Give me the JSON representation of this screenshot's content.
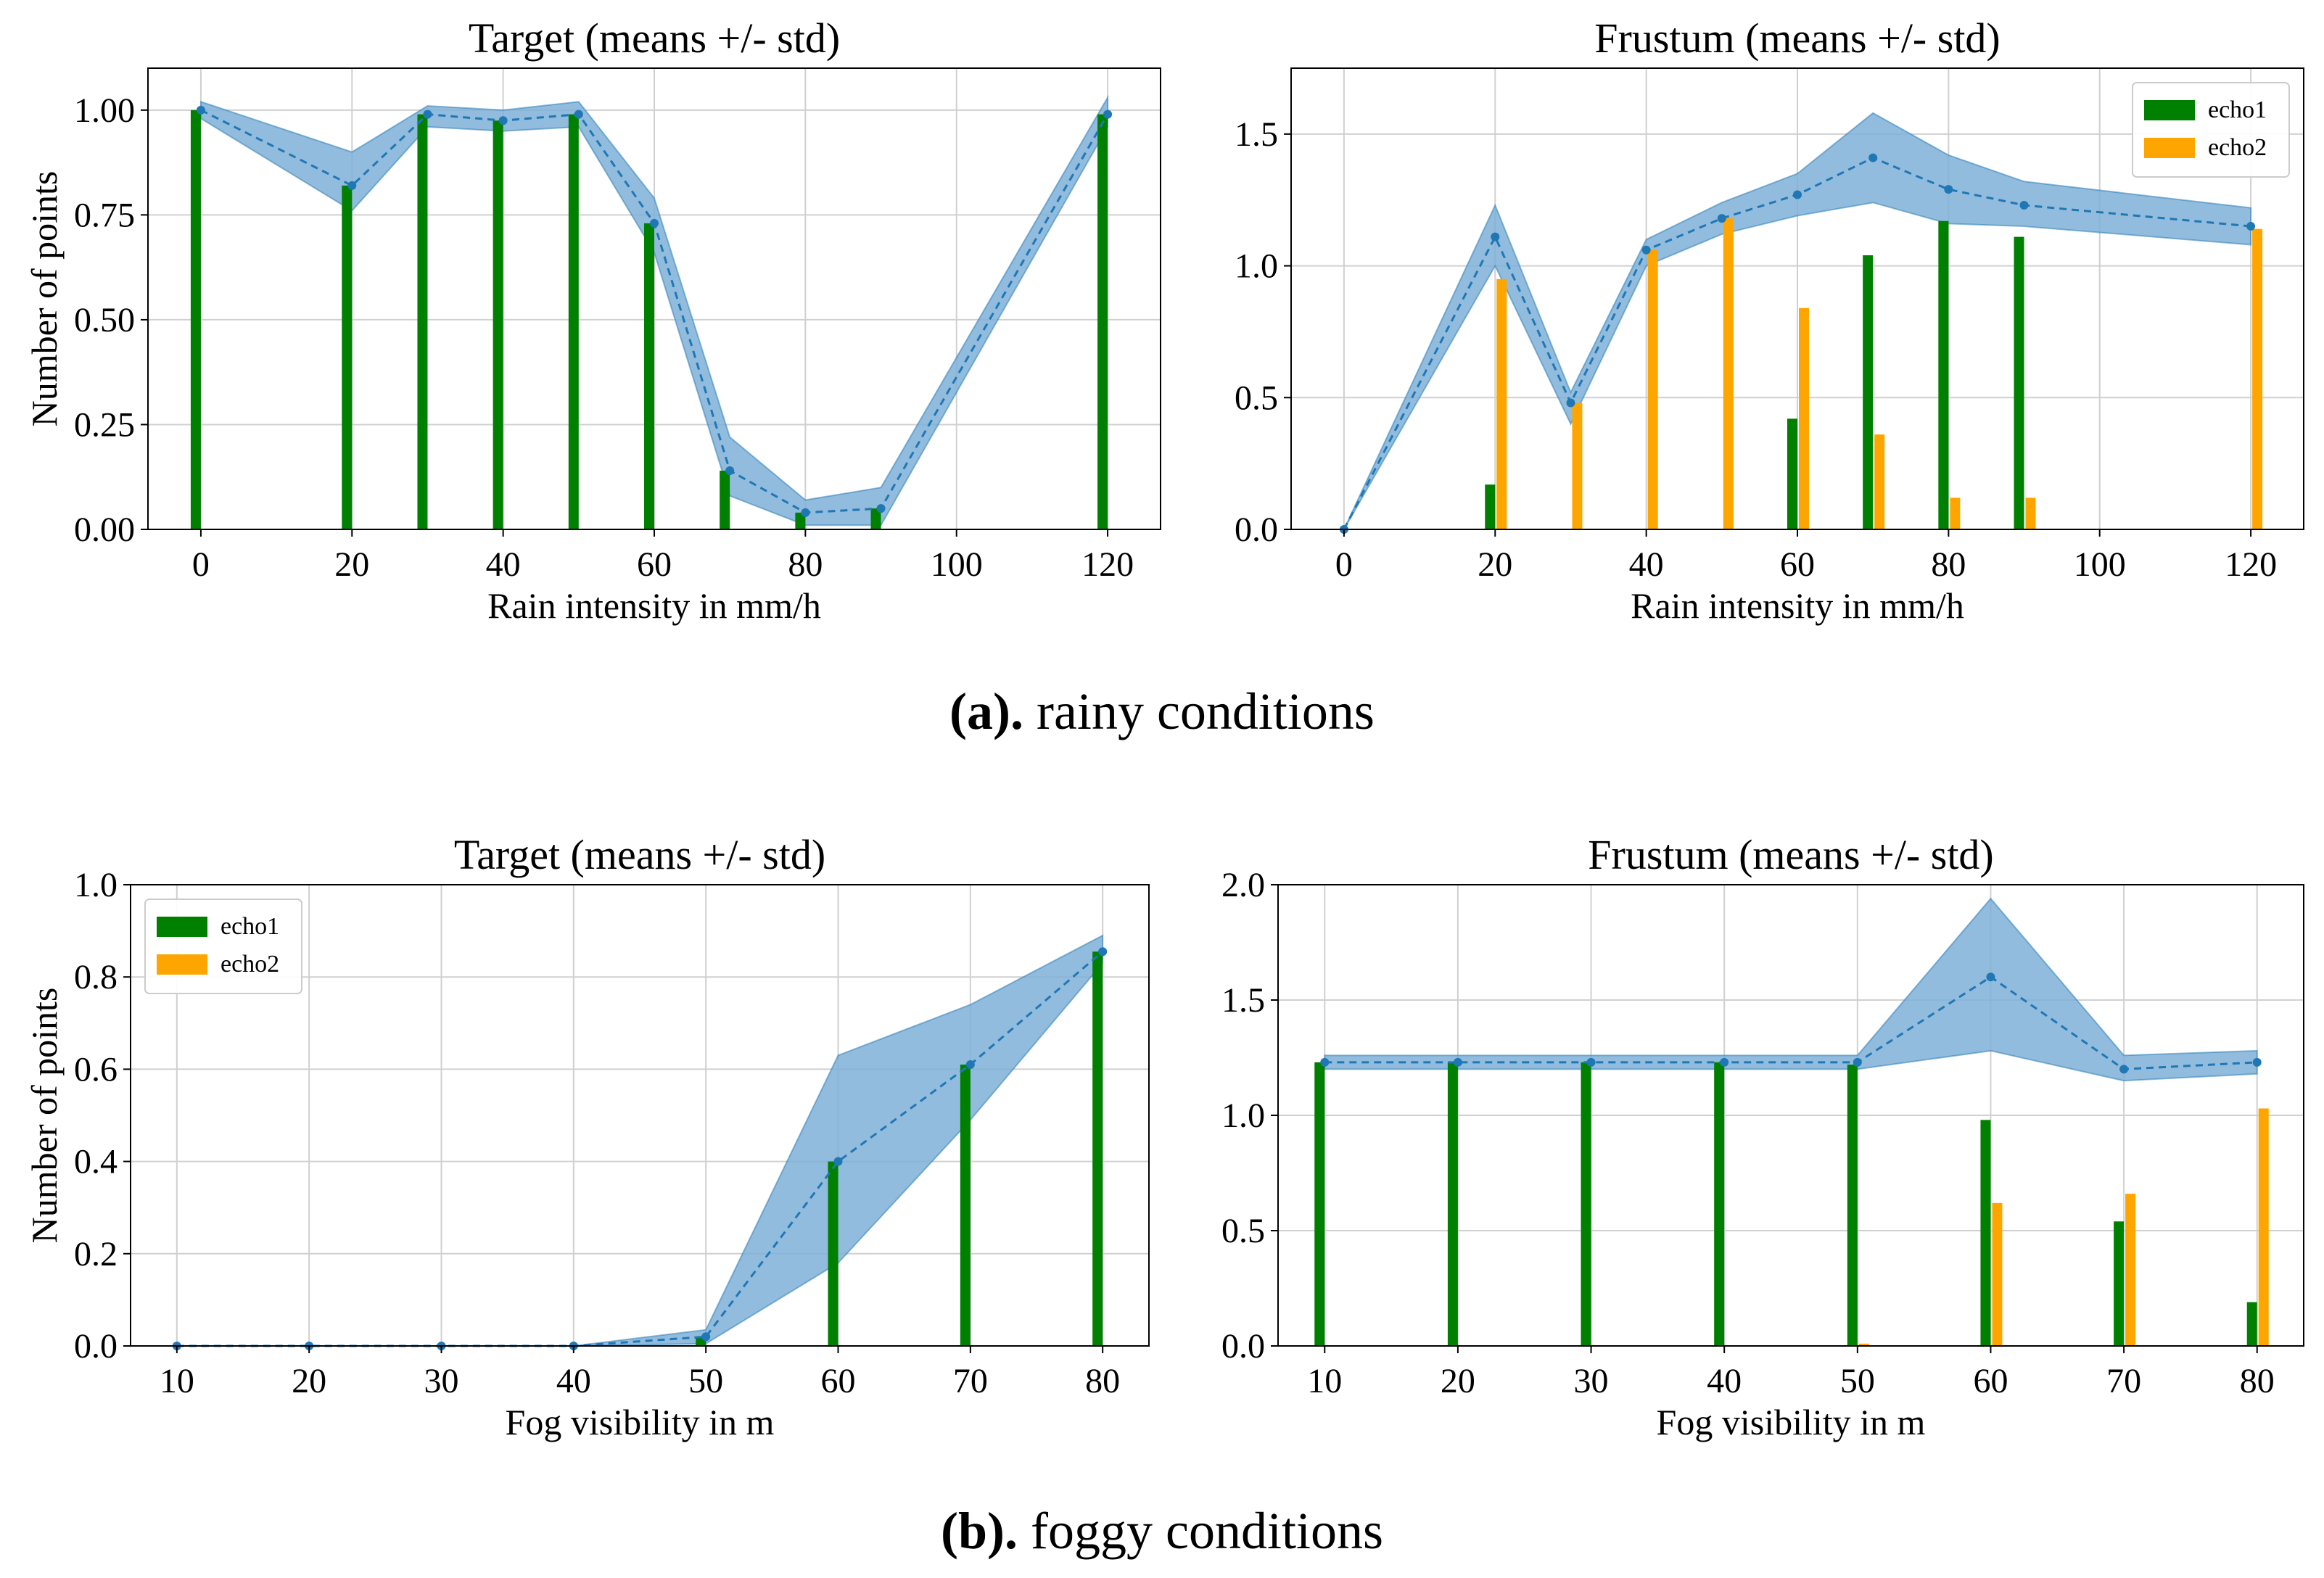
{
  "colors": {
    "echo1": "#008000",
    "echo2": "#FFA500",
    "mean": "#1f77b4",
    "band": "#7fb0d8",
    "grid": "#d0d0d0"
  },
  "captions": [
    {
      "label": "(a).",
      "text": "rainy conditions"
    },
    {
      "label": "(b).",
      "text": "foggy conditions"
    }
  ],
  "chart_data": [
    {
      "type": "bar",
      "title": "Target (means +/- std)",
      "xlabel": "Rain intensity in mm/h",
      "ylabel": "Number of points",
      "xlim": [
        -7,
        127
      ],
      "ylim": [
        0,
        1.1
      ],
      "xticks": [
        0,
        20,
        40,
        60,
        80,
        100,
        120
      ],
      "xtick_labels": [
        "0",
        "20",
        "40",
        "60",
        "80",
        "100",
        "120"
      ],
      "yticks": [
        0,
        0.25,
        0.5,
        0.75,
        1.0
      ],
      "ytick_labels": [
        "0.00",
        "0.25",
        "0.50",
        "0.75",
        "1.00"
      ],
      "legend": null,
      "x": [
        0,
        20,
        30,
        40,
        50,
        60,
        70,
        80,
        90,
        120
      ],
      "mean": [
        1.0,
        0.82,
        0.99,
        0.975,
        0.99,
        0.73,
        0.14,
        0.04,
        0.05,
        0.99
      ],
      "std_upper": [
        1.02,
        0.9,
        1.01,
        1.0,
        1.02,
        0.79,
        0.22,
        0.07,
        0.1,
        1.03
      ],
      "std_lower": [
        0.98,
        0.76,
        0.96,
        0.95,
        0.96,
        0.66,
        0.08,
        0.01,
        0.01,
        0.96
      ],
      "series": [
        {
          "name": "echo1",
          "values": [
            1.0,
            0.82,
            0.99,
            0.975,
            0.99,
            0.73,
            0.14,
            0.04,
            0.05,
            0.99
          ]
        },
        {
          "name": "echo2",
          "values": [
            0,
            0,
            0,
            0,
            0,
            0,
            0,
            0,
            0,
            0
          ]
        }
      ]
    },
    {
      "type": "bar",
      "title": "Frustum (means +/- std)",
      "xlabel": "Rain intensity in mm/h",
      "ylabel": "",
      "xlim": [
        -7,
        127
      ],
      "ylim": [
        0,
        1.75
      ],
      "xticks": [
        0,
        20,
        40,
        60,
        80,
        100,
        120
      ],
      "xtick_labels": [
        "0",
        "20",
        "40",
        "60",
        "80",
        "100",
        "120"
      ],
      "yticks": [
        0,
        0.5,
        1.0,
        1.5
      ],
      "ytick_labels": [
        "0.0",
        "0.5",
        "1.0",
        "1.5"
      ],
      "legend": "top-right",
      "x": [
        0,
        20,
        30,
        40,
        50,
        60,
        70,
        80,
        90,
        120
      ],
      "mean": [
        0,
        1.11,
        0.48,
        1.06,
        1.18,
        1.27,
        1.41,
        1.29,
        1.23,
        1.15
      ],
      "std_upper": [
        0,
        1.23,
        0.52,
        1.1,
        1.24,
        1.35,
        1.58,
        1.42,
        1.32,
        1.22
      ],
      "std_lower": [
        0,
        1.0,
        0.4,
        1.0,
        1.12,
        1.19,
        1.24,
        1.16,
        1.15,
        1.08
      ],
      "series": [
        {
          "name": "echo1",
          "values": [
            0,
            0.17,
            0,
            0,
            0,
            0.42,
            1.04,
            1.17,
            1.11,
            0
          ]
        },
        {
          "name": "echo2",
          "values": [
            0,
            0.95,
            0.48,
            1.06,
            1.18,
            0.84,
            0.36,
            0.12,
            0.12,
            1.14
          ]
        }
      ]
    },
    {
      "type": "bar",
      "title": "Target (means +/- std)",
      "xlabel": "Fog visibility in m",
      "ylabel": "Number of points",
      "xlim": [
        6.5,
        83.5
      ],
      "ylim": [
        0,
        1.0
      ],
      "xticks": [
        10,
        20,
        30,
        40,
        50,
        60,
        70,
        80
      ],
      "xtick_labels": [
        "10",
        "20",
        "30",
        "40",
        "50",
        "60",
        "70",
        "80"
      ],
      "yticks": [
        0,
        0.2,
        0.4,
        0.6,
        0.8,
        1.0
      ],
      "ytick_labels": [
        "0.0",
        "0.2",
        "0.4",
        "0.6",
        "0.8",
        "1.0"
      ],
      "legend": "top-left",
      "x": [
        10,
        20,
        30,
        40,
        50,
        60,
        70,
        80
      ],
      "mean": [
        0,
        0,
        0,
        0,
        0.02,
        0.4,
        0.61,
        0.855
      ],
      "std_upper": [
        0,
        0,
        0,
        0,
        0.035,
        0.63,
        0.74,
        0.89
      ],
      "std_lower": [
        0,
        0,
        0,
        0,
        0.005,
        0.18,
        0.49,
        0.83
      ],
      "series": [
        {
          "name": "echo1",
          "values": [
            0,
            0,
            0,
            0,
            0.02,
            0.4,
            0.61,
            0.855
          ]
        },
        {
          "name": "echo2",
          "values": [
            0,
            0,
            0,
            0,
            0,
            0,
            0,
            0
          ]
        }
      ]
    },
    {
      "type": "bar",
      "title": "Frustum (means +/- std)",
      "xlabel": "Fog visibility in m",
      "ylabel": "",
      "xlim": [
        6.5,
        83.5
      ],
      "ylim": [
        0,
        2.0
      ],
      "xticks": [
        10,
        20,
        30,
        40,
        50,
        60,
        70,
        80
      ],
      "xtick_labels": [
        "10",
        "20",
        "30",
        "40",
        "50",
        "60",
        "70",
        "80"
      ],
      "yticks": [
        0,
        0.5,
        1.0,
        1.5,
        2.0
      ],
      "ytick_labels": [
        "0.0",
        "0.5",
        "1.0",
        "1.5",
        "2.0"
      ],
      "legend": null,
      "x": [
        10,
        20,
        30,
        40,
        50,
        60,
        70,
        80
      ],
      "mean": [
        1.23,
        1.23,
        1.23,
        1.23,
        1.23,
        1.6,
        1.2,
        1.23
      ],
      "std_upper": [
        1.26,
        1.26,
        1.26,
        1.26,
        1.26,
        1.94,
        1.26,
        1.28
      ],
      "std_lower": [
        1.2,
        1.2,
        1.2,
        1.2,
        1.2,
        1.28,
        1.15,
        1.18
      ],
      "series": [
        {
          "name": "echo1",
          "values": [
            1.23,
            1.23,
            1.23,
            1.23,
            1.22,
            0.98,
            0.54,
            0.19
          ]
        },
        {
          "name": "echo2",
          "values": [
            0,
            0,
            0,
            0,
            0.01,
            0.62,
            0.66,
            1.03
          ]
        }
      ]
    }
  ]
}
